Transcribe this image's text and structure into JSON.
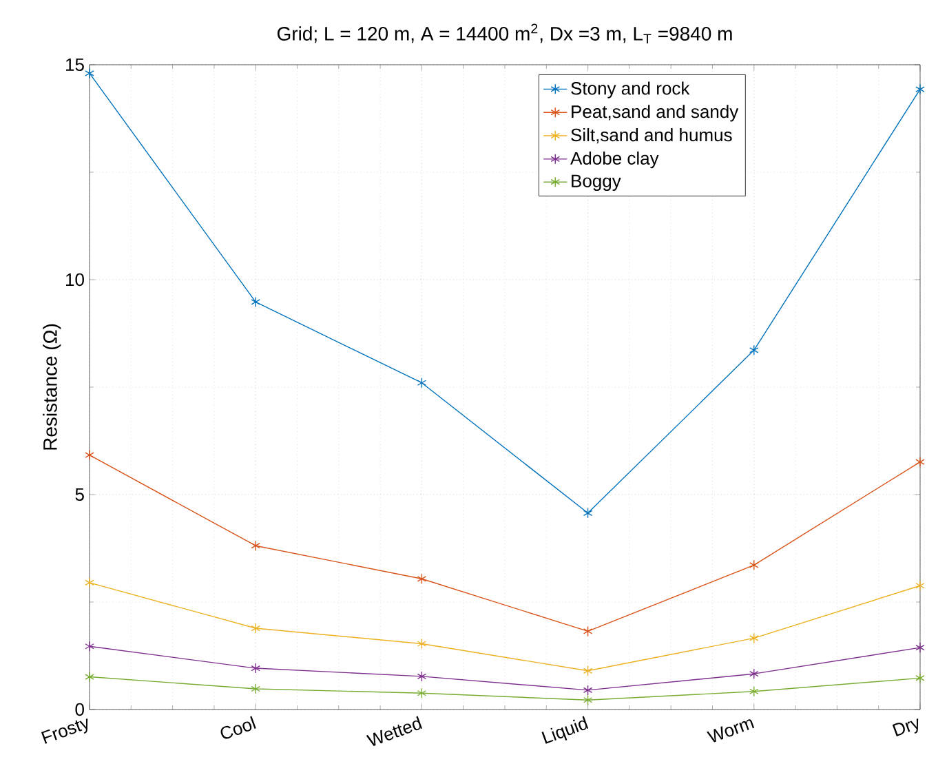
{
  "chart_data": {
    "type": "line",
    "title": "Grid;  L = 120 m,  A = 14400 m$^{2}$,   Dx =3 m,    L$_{T}$ =9840 m",
    "ylabel": "Resistance (Ω)",
    "categories": [
      "Frosty",
      "Cool",
      "Wetted",
      "Liquid",
      "Worm",
      "Dry"
    ],
    "ylim": [
      0,
      15
    ],
    "yticks": [
      0,
      5,
      10,
      15
    ],
    "grid": true,
    "legend": "top right",
    "marker": "cross",
    "line_style": "solid",
    "series": [
      {
        "name": "Stony and rock",
        "color": "#0072bd",
        "values": [
          14.8,
          9.48,
          7.6,
          4.57,
          8.36,
          14.43
        ]
      },
      {
        "name": "Peat,sand and sandy",
        "color": "#d95319",
        "values": [
          5.92,
          3.81,
          3.04,
          1.82,
          3.36,
          5.76
        ]
      },
      {
        "name": "Silt,sand and humus",
        "color": "#edb120",
        "values": [
          2.95,
          1.89,
          1.53,
          0.9,
          1.66,
          2.88
        ]
      },
      {
        "name": "Adobe clay",
        "color": "#7e2f8e",
        "values": [
          1.47,
          0.96,
          0.77,
          0.45,
          0.83,
          1.44
        ]
      },
      {
        "name": "Boggy",
        "color": "#77ac30",
        "values": [
          0.76,
          0.48,
          0.38,
          0.22,
          0.42,
          0.73
        ]
      }
    ]
  }
}
